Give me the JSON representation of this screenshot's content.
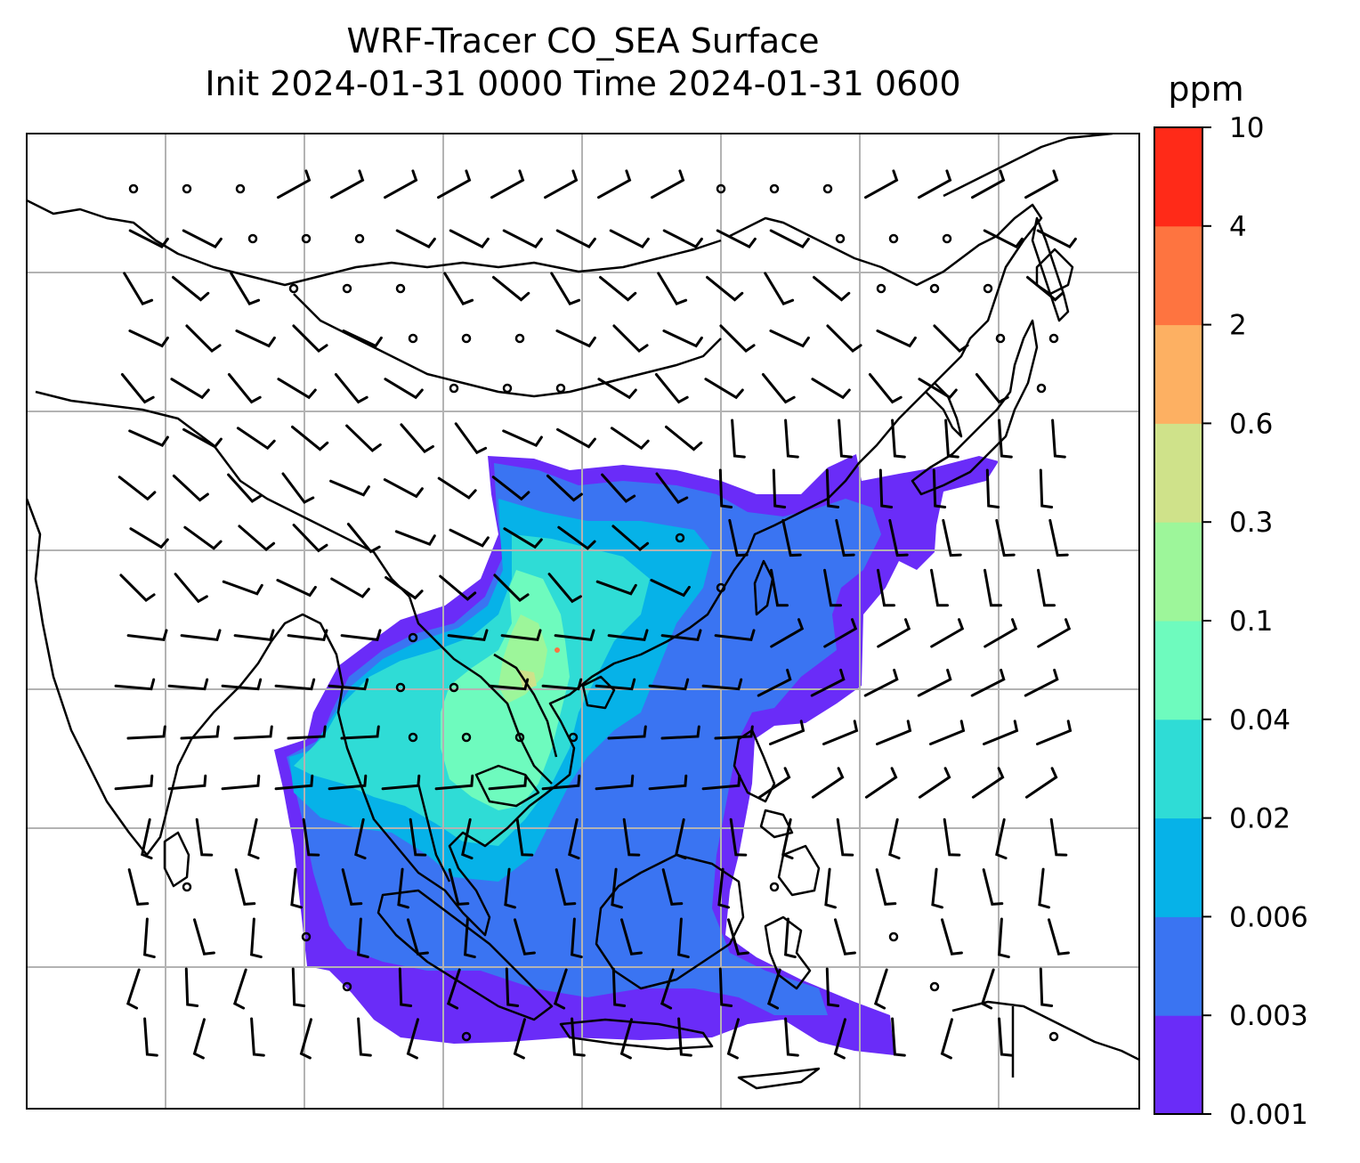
{
  "title": {
    "line1": "WRF-Tracer CO_SEA Surface",
    "line2": "Init 2024-01-31 0000 Time 2024-01-31 0600"
  },
  "colorbar": {
    "unit": "ppm",
    "levels": [
      "0.001",
      "0.003",
      "0.006",
      "0.02",
      "0.04",
      "0.1",
      "0.3",
      "0.6",
      "2",
      "4",
      "10"
    ],
    "colors": [
      "#6a2cf8",
      "#3a74f2",
      "#06b2e8",
      "#2fdcd6",
      "#6efbbe",
      "#9df69a",
      "#cfe28a",
      "#fdb062",
      "#fe7440",
      "#ff2a18"
    ]
  },
  "map": {
    "background": "#ffffff",
    "gridline_color": "#b3b3b3",
    "coastline_color": "#000000",
    "gridline_count_x": 7,
    "gridline_count_y": 6
  }
}
